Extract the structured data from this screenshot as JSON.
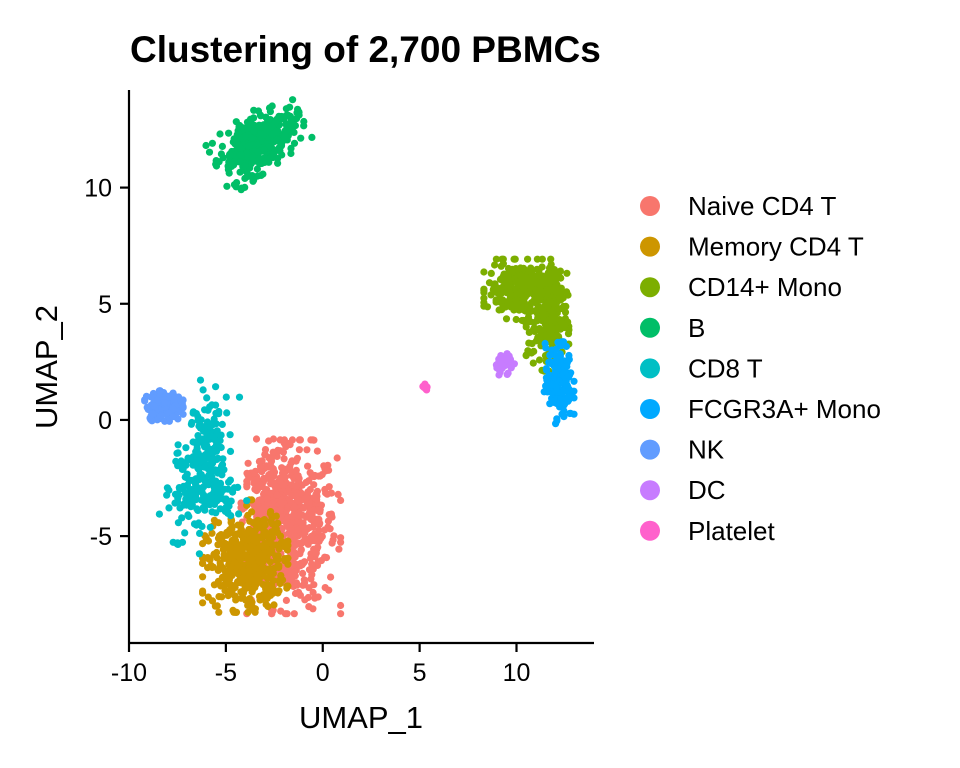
{
  "chart_data": {
    "type": "scatter",
    "title": "Clustering of 2,700 PBMCs",
    "xlabel": "UMAP_1",
    "ylabel": "UMAP_2",
    "xlim": [
      -10,
      14
    ],
    "ylim": [
      -9.6,
      14.2
    ],
    "xticks": [
      -10,
      -5,
      0,
      5,
      10
    ],
    "xtick_labels": [
      "-10",
      "-5",
      "0",
      "5",
      "10"
    ],
    "yticks": [
      -5,
      0,
      5,
      10
    ],
    "ytick_labels": [
      "-5",
      "0",
      "5",
      "10"
    ],
    "grid": false,
    "legend_position": "right",
    "series": [
      {
        "name": "Naive CD4 T",
        "color": "#F8766D",
        "count": 697,
        "regions": [
          {
            "cx": -1.5,
            "cy": -4.6,
            "sx": 1.1,
            "sy": 1.7,
            "w": 0.7
          },
          {
            "cx": -2.9,
            "cy": -3.9,
            "sx": 0.6,
            "sy": 1.4,
            "w": 0.3
          }
        ]
      },
      {
        "name": "Memory CD4 T",
        "color": "#CD9600",
        "count": 483,
        "regions": [
          {
            "cx": -4.0,
            "cy": -6.3,
            "sx": 1.0,
            "sy": 0.9,
            "w": 0.8
          },
          {
            "cx": -3.5,
            "cy": -5.2,
            "sx": 0.7,
            "sy": 0.8,
            "w": 0.2
          }
        ]
      },
      {
        "name": "CD14+ Mono",
        "color": "#7CAE00",
        "count": 480,
        "regions": [
          {
            "cx": 10.3,
            "cy": 5.6,
            "sx": 0.9,
            "sy": 0.6,
            "w": 0.6
          },
          {
            "cx": 11.6,
            "cy": 4.3,
            "sx": 0.5,
            "sy": 1.0,
            "w": 0.4
          }
        ]
      },
      {
        "name": "B",
        "color": "#00BE67",
        "count": 344,
        "regions": [
          {
            "cx": -3.3,
            "cy": 12.0,
            "sx": 1.1,
            "sy": 0.6,
            "rot": 0.55,
            "w": 1.0
          }
        ]
      },
      {
        "name": "CD8 T",
        "color": "#00BFC4",
        "count": 271,
        "regions": [
          {
            "cx": -6.4,
            "cy": -2.0,
            "sx": 0.6,
            "sy": 1.6,
            "rot": -0.35,
            "w": 0.8
          },
          {
            "cx": -5.5,
            "cy": -3.3,
            "sx": 0.9,
            "sy": 0.6,
            "w": 0.2
          }
        ]
      },
      {
        "name": "FCGR3A+ Mono",
        "color": "#00A9FF",
        "count": 162,
        "regions": [
          {
            "cx": 12.2,
            "cy": 1.6,
            "sx": 0.35,
            "sy": 0.8,
            "w": 1.0
          }
        ]
      },
      {
        "name": "NK",
        "color": "#619CFF",
        "count": 155,
        "regions": [
          {
            "cx": -8.2,
            "cy": 0.6,
            "sx": 0.45,
            "sy": 0.3,
            "w": 1.0
          }
        ]
      },
      {
        "name": "DC",
        "color": "#C77CFF",
        "count": 32,
        "regions": [
          {
            "cx": 9.3,
            "cy": 2.4,
            "sx": 0.3,
            "sy": 0.25,
            "rot": 0.6,
            "w": 1.0
          }
        ]
      },
      {
        "name": "Platelet",
        "color": "#FF61CC",
        "count": 14,
        "regions": [
          {
            "cx": 5.3,
            "cy": 1.4,
            "sx": 0.06,
            "sy": 0.08,
            "w": 1.0
          }
        ]
      }
    ]
  }
}
